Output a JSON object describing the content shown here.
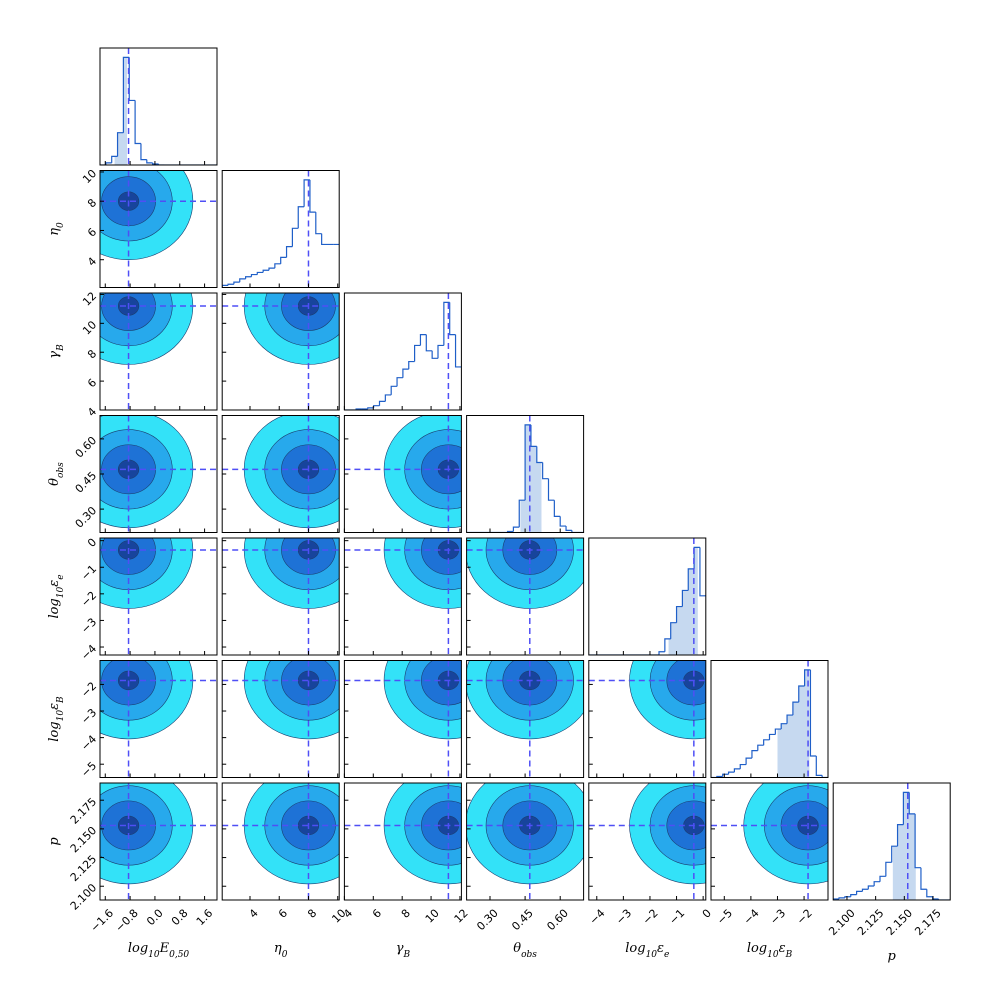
{
  "chart_data": {
    "type": "corner",
    "truth_color": "#4f4ff5",
    "hist_color": "#1f5fc8",
    "interval_color": "#c6d9f0",
    "contour_colors": [
      "#33e2f8",
      "#27a9ec",
      "#1e72d6",
      "#17449c"
    ],
    "parameters": [
      {
        "label": [
          {
            "text": "log"
          },
          {
            "text": "10",
            "sub": true
          },
          {
            "text": "E"
          },
          {
            "text": "0,50",
            "sub": true
          }
        ],
        "range": [
          -1.77,
          2.0
        ],
        "ticks": [
          {
            "value": -1.6,
            "label": "−1.6"
          },
          {
            "value": -0.8,
            "label": "−0.8"
          },
          {
            "value": 0,
            "label": "0.0"
          },
          {
            "value": 0.8,
            "label": "0.8"
          },
          {
            "value": 1.6,
            "label": "1.6"
          }
        ],
        "truth": -0.85,
        "interval": [
          -1.3,
          -0.9
        ],
        "hist": [
          0,
          2,
          8,
          30,
          100,
          60,
          20,
          5,
          2,
          1,
          0,
          0,
          0,
          0,
          0,
          0,
          0,
          0,
          0,
          0
        ]
      },
      {
        "label": [
          {
            "text": "η"
          },
          {
            "text": "0",
            "sub": true
          }
        ],
        "range": [
          2.1,
          10.1
        ],
        "ticks": [
          4,
          6,
          8,
          10
        ],
        "truth": 8.0,
        "hist": [
          2,
          3,
          5,
          8,
          10,
          12,
          14,
          16,
          18,
          22,
          28,
          38,
          55,
          75,
          100,
          70,
          50,
          40,
          40,
          40
        ]
      },
      {
        "label": [
          {
            "text": "γ"
          },
          {
            "text": "B",
            "sub": true
          }
        ],
        "range": [
          4,
          12.1
        ],
        "ticks": [
          4,
          6,
          8,
          10,
          12
        ],
        "truth": 11.2,
        "hist": [
          0,
          0,
          1,
          1,
          2,
          4,
          8,
          14,
          22,
          30,
          38,
          45,
          60,
          70,
          55,
          48,
          60,
          100,
          70,
          40
        ]
      },
      {
        "label": [
          {
            "text": "θ"
          },
          {
            "text": "obs",
            "sub": true
          }
        ],
        "range": [
          0.2,
          0.7
        ],
        "ticks": [
          {
            "value": 0.3,
            "label": "0.30"
          },
          {
            "value": 0.45,
            "label": "0.45"
          },
          {
            "value": 0.6,
            "label": "0.60"
          }
        ],
        "truth": 0.47,
        "interval": [
          0.43,
          0.52
        ],
        "hist": [
          0,
          0,
          0,
          0,
          0,
          0,
          0,
          1,
          5,
          30,
          100,
          80,
          65,
          50,
          30,
          15,
          6,
          2,
          0,
          0
        ]
      },
      {
        "label": [
          {
            "text": "log"
          },
          {
            "text": "10",
            "sub": true
          },
          {
            "text": "ε"
          },
          {
            "text": "e",
            "sub": true
          }
        ],
        "range": [
          -4.3,
          0.1
        ],
        "ticks": [
          {
            "value": -4,
            "label": "−4"
          },
          {
            "value": -3,
            "label": "−3"
          },
          {
            "value": -2,
            "label": "−2"
          },
          {
            "value": -1,
            "label": "−1"
          },
          0
        ],
        "truth": -0.35,
        "interval": [
          -1.3,
          -0.2
        ],
        "hist": [
          0,
          0,
          0,
          0,
          0,
          0,
          0,
          0,
          0,
          0,
          0,
          0,
          3,
          15,
          30,
          45,
          60,
          80,
          100,
          55
        ]
      },
      {
        "label": [
          {
            "text": "log"
          },
          {
            "text": "10",
            "sub": true
          },
          {
            "text": "ε"
          },
          {
            "text": "B",
            "sub": true
          }
        ],
        "range": [
          -5.5,
          -1.1
        ],
        "ticks": [
          {
            "value": -5,
            "label": "−5"
          },
          {
            "value": -4,
            "label": "−4"
          },
          {
            "value": -3,
            "label": "−3"
          },
          {
            "value": -2,
            "label": "−2"
          }
        ],
        "truth": -1.85,
        "interval": [
          -3.0,
          -1.8
        ],
        "hist": [
          0,
          1,
          3,
          5,
          8,
          12,
          18,
          25,
          30,
          35,
          40,
          45,
          50,
          58,
          70,
          85,
          100,
          20,
          2,
          0
        ]
      },
      {
        "label": [
          {
            "text": "p"
          }
        ],
        "range": [
          2.088,
          2.19
        ],
        "ticks": [
          {
            "value": 2.1,
            "label": "2.100"
          },
          {
            "value": 2.125,
            "label": "2.125"
          },
          {
            "value": 2.15,
            "label": "2.150"
          },
          {
            "value": 2.175,
            "label": "2.175"
          }
        ],
        "truth": 2.153,
        "interval": [
          2.14,
          2.16
        ],
        "hist": [
          1,
          2,
          3,
          5,
          8,
          10,
          13,
          17,
          22,
          35,
          50,
          70,
          100,
          80,
          30,
          10,
          3,
          1,
          0,
          0
        ]
      }
    ]
  }
}
